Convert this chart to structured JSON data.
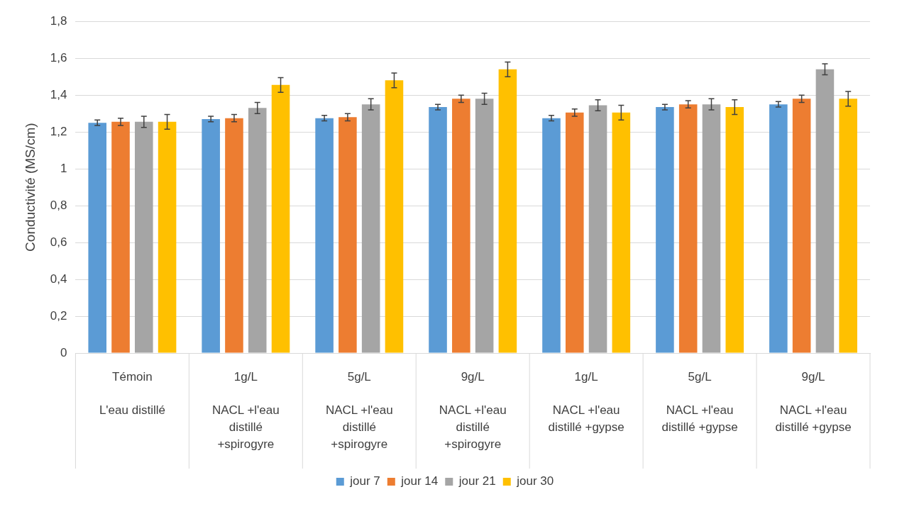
{
  "chart_data": {
    "type": "bar",
    "ylabel": "Conductivité (MS/cm)",
    "categories": [
      "Témoin\nL'eau distillé",
      "1g/L\nNACL +l'eau distillé +spirogyre",
      "5g/L\nNACL +l'eau distillé +spirogyre",
      "9g/L\nNACL +l'eau distillé +spirogyre",
      "1g/L\nNACL +l'eau distillé +gypse",
      "5g/L\nNACL +l'eau distillé +gypse",
      "9g/L\nNACL +l'eau distillé +gypse"
    ],
    "series": [
      {
        "name": "jour 7",
        "color": "#5b9bd5",
        "values": [
          1.25,
          1.27,
          1.275,
          1.335,
          1.275,
          1.335,
          1.35
        ],
        "errors": [
          0.015,
          0.015,
          0.015,
          0.015,
          0.015,
          0.015,
          0.015
        ]
      },
      {
        "name": "jour 14",
        "color": "#ed7d31",
        "values": [
          1.255,
          1.275,
          1.28,
          1.38,
          1.305,
          1.35,
          1.38
        ],
        "errors": [
          0.02,
          0.02,
          0.02,
          0.02,
          0.02,
          0.02,
          0.02
        ]
      },
      {
        "name": "jour 21",
        "color": "#a5a5a5",
        "values": [
          1.255,
          1.33,
          1.35,
          1.38,
          1.345,
          1.35,
          1.54
        ],
        "errors": [
          0.03,
          0.03,
          0.03,
          0.03,
          0.03,
          0.03,
          0.03
        ]
      },
      {
        "name": "jour 30",
        "color": "#ffc000",
        "values": [
          1.255,
          1.455,
          1.48,
          1.54,
          1.305,
          1.335,
          1.38
        ],
        "errors": [
          0.04,
          0.04,
          0.04,
          0.04,
          0.04,
          0.04,
          0.04
        ]
      }
    ],
    "ylim": [
      0,
      1.8
    ],
    "yticks": [
      0,
      {
        "value": 0.2,
        "label": "0,2"
      },
      {
        "value": 0.4,
        "label": "0,4"
      },
      {
        "value": 0.6,
        "label": "0,6"
      },
      {
        "value": 0.8,
        "label": "0,8"
      },
      1,
      {
        "value": 1.2,
        "label": "1,2"
      },
      {
        "value": 1.4,
        "label": "1,4"
      },
      {
        "value": 1.6,
        "label": "1,6"
      },
      {
        "value": 1.8,
        "label": "1,8"
      }
    ],
    "grid": "y",
    "legend": "bottom"
  }
}
